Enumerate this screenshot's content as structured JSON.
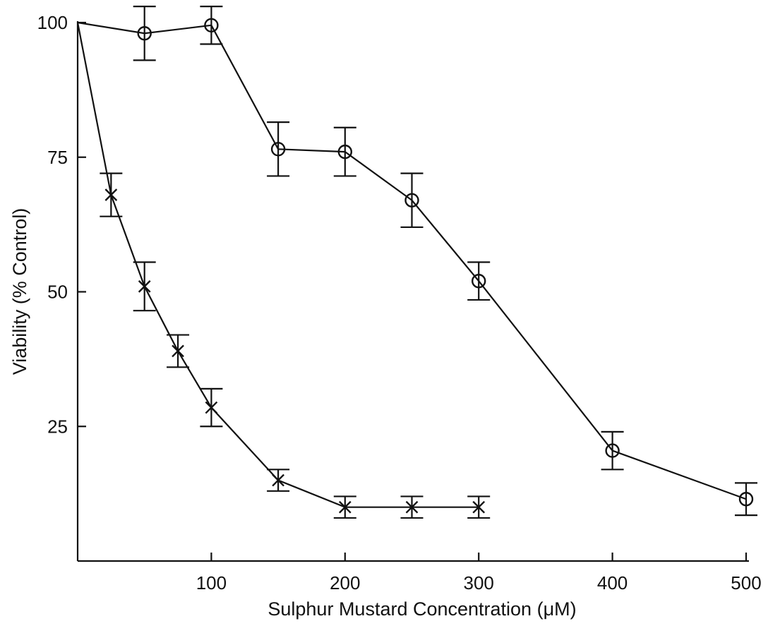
{
  "chart_data": {
    "type": "line",
    "title": "",
    "xlabel": "Sulphur Mustard Concentration (μM)",
    "ylabel": "Viability (% Control)",
    "xlim": [
      0,
      500
    ],
    "ylim": [
      0,
      100
    ],
    "x_ticks": [
      100,
      200,
      300,
      400,
      500
    ],
    "y_ticks": [
      25,
      50,
      75,
      100
    ],
    "grid": false,
    "legend": "none",
    "series": [
      {
        "marker": "circle",
        "color": "#111111",
        "points": [
          {
            "x": 0,
            "y": 100,
            "err": 0
          },
          {
            "x": 50,
            "y": 98,
            "err": 5
          },
          {
            "x": 100,
            "y": 99.5,
            "err": 3.5
          },
          {
            "x": 150,
            "y": 76.5,
            "err": 5
          },
          {
            "x": 200,
            "y": 76,
            "err": 4.5
          },
          {
            "x": 250,
            "y": 67,
            "err": 5
          },
          {
            "x": 300,
            "y": 52,
            "err": 3.5
          },
          {
            "x": 400,
            "y": 20.5,
            "err": 3.5
          },
          {
            "x": 500,
            "y": 11.5,
            "err": 3
          }
        ]
      },
      {
        "marker": "x",
        "color": "#111111",
        "points": [
          {
            "x": 0,
            "y": 100,
            "err": 0
          },
          {
            "x": 25,
            "y": 68,
            "err": 4
          },
          {
            "x": 50,
            "y": 51,
            "err": 4.5
          },
          {
            "x": 75,
            "y": 39,
            "err": 3
          },
          {
            "x": 100,
            "y": 28.5,
            "err": 3.5
          },
          {
            "x": 150,
            "y": 15,
            "err": 2
          },
          {
            "x": 200,
            "y": 10,
            "err": 2
          },
          {
            "x": 250,
            "y": 10,
            "err": 2
          },
          {
            "x": 300,
            "y": 10,
            "err": 2
          }
        ]
      }
    ]
  }
}
